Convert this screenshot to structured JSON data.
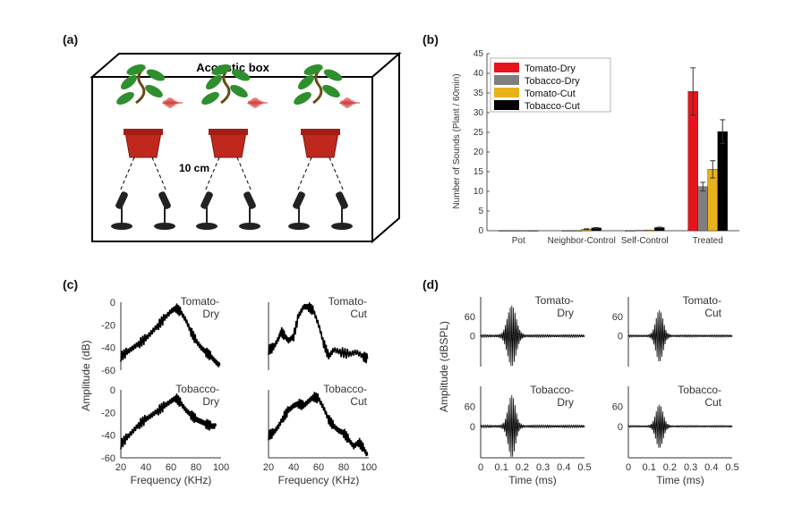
{
  "panels": {
    "a": {
      "label": "(a)",
      "box_title": "Acoustic box",
      "distance": "10 cm",
      "plant_count": 3,
      "mics_per_plant": 2
    },
    "b": {
      "label": "(b)"
    },
    "c": {
      "label": "(c)"
    },
    "d": {
      "label": "(d)"
    }
  },
  "colors": {
    "tomato_dry": "#e8141b",
    "tobacco_dry": "#7f7f7f",
    "tomato_cut": "#e8b31a",
    "tobacco_cut": "#000000",
    "leaf": "#2f8f2f",
    "pot": "#c0281e",
    "wave": "#d23a3a"
  },
  "chart_data": [
    {
      "id": "b",
      "type": "bar",
      "title": "",
      "ylabel": "Number of Sounds (Plant / 60min)",
      "xlabel": "",
      "ylim": [
        0,
        45
      ],
      "yticks": [
        0,
        5,
        10,
        15,
        20,
        25,
        30,
        35,
        40,
        45
      ],
      "categories": [
        "Pot",
        "Neighbor-Control",
        "Self-Control",
        "Treated"
      ],
      "legend_position": "top-left",
      "series": [
        {
          "name": "Tomato-Dry",
          "color": "#e8141b",
          "values": [
            0,
            0,
            0,
            35.4
          ],
          "errors": [
            0,
            0,
            0,
            6
          ]
        },
        {
          "name": "Tobacco-Dry",
          "color": "#7f7f7f",
          "values": [
            0,
            0,
            0.1,
            11.2
          ],
          "errors": [
            0,
            0,
            0,
            1.1
          ]
        },
        {
          "name": "Tomato-Cut",
          "color": "#e8b31a",
          "values": [
            0,
            0.4,
            0.2,
            15.6
          ],
          "errors": [
            0,
            0.1,
            0,
            2.2
          ]
        },
        {
          "name": "Tobacco-Cut",
          "color": "#000000",
          "values": [
            0,
            0.7,
            0.8,
            25.2
          ],
          "errors": [
            0,
            0.1,
            0.1,
            3
          ]
        }
      ]
    },
    {
      "id": "c",
      "type": "line",
      "ylabel": "Amplitude (dB)",
      "xlabel": "Frequency  (KHz)",
      "xlim": [
        20,
        100
      ],
      "xticks": [
        20,
        40,
        60,
        80,
        100
      ],
      "ylim": [
        -60,
        0
      ],
      "yticks": [
        0,
        -20,
        -40,
        -60
      ],
      "subplots": [
        {
          "name": "Tomato-Dry",
          "label_lines": [
            "Tomato-",
            "Dry"
          ],
          "x": [
            20,
            25,
            30,
            35,
            40,
            45,
            50,
            55,
            60,
            64,
            68,
            72,
            76,
            80,
            84,
            88,
            92,
            96,
            99
          ],
          "y": [
            -48,
            -44,
            -40,
            -36,
            -32,
            -26,
            -20,
            -14,
            -8,
            -5,
            -9,
            -16,
            -26,
            -34,
            -40,
            -44,
            -48,
            -53,
            -56
          ]
        },
        {
          "name": "Tomato-Cut",
          "label_lines": [
            "Tomato-",
            "Cut"
          ],
          "x": [
            20,
            24,
            28,
            30,
            33,
            36,
            40,
            44,
            48,
            52,
            56,
            60,
            64,
            68,
            72,
            78,
            84,
            90,
            96,
            99
          ],
          "y": [
            -42,
            -40,
            -32,
            -26,
            -30,
            -34,
            -30,
            -12,
            -4,
            -4,
            -8,
            -20,
            -36,
            -48,
            -42,
            -44,
            -46,
            -44,
            -48,
            -50
          ]
        },
        {
          "name": "Tobacco-Dry",
          "label_lines": [
            "Tobacco-",
            "Dry"
          ],
          "x": [
            20,
            25,
            30,
            35,
            40,
            45,
            50,
            55,
            60,
            64,
            68,
            72,
            76,
            80,
            84,
            88,
            92,
            96
          ],
          "y": [
            -48,
            -42,
            -36,
            -30,
            -26,
            -22,
            -18,
            -14,
            -10,
            -7,
            -12,
            -18,
            -22,
            -26,
            -28,
            -30,
            -32,
            -32
          ]
        },
        {
          "name": "Tobacco-Cut",
          "label_lines": [
            "Tobacco-",
            "Cut"
          ],
          "x": [
            20,
            24,
            28,
            32,
            36,
            40,
            44,
            48,
            52,
            56,
            60,
            64,
            68,
            72,
            76,
            80,
            84,
            88,
            92,
            96,
            99
          ],
          "y": [
            -40,
            -38,
            -32,
            -24,
            -18,
            -14,
            -12,
            -14,
            -10,
            -6,
            -8,
            -16,
            -26,
            -32,
            -36,
            -38,
            -44,
            -50,
            -46,
            -52,
            -58
          ]
        }
      ]
    },
    {
      "id": "d",
      "type": "line",
      "ylabel": "Amplitude (dBSPL)",
      "xlabel": "Time (ms)",
      "xlim": [
        0,
        0.5
      ],
      "xticks": [
        "0",
        "0.1",
        "0.2",
        "0.3",
        "0.4",
        "0.5"
      ],
      "yticks": [
        "60",
        "0"
      ],
      "subplots": [
        {
          "name": "Tomato-Dry",
          "label_lines": [
            "Tomato-",
            "Dry"
          ],
          "center_ms": 0.15,
          "peak": 1.0,
          "decay": 0.06
        },
        {
          "name": "Tomato-Cut",
          "label_lines": [
            "Tomato-",
            "Cut"
          ],
          "center_ms": 0.15,
          "peak": 0.85,
          "decay": 0.05
        },
        {
          "name": "Tobacco-Dry",
          "label_lines": [
            "Tobacco-",
            "Dry"
          ],
          "center_ms": 0.15,
          "peak": 1.0,
          "decay": 0.05
        },
        {
          "name": "Tobacco-Cut",
          "label_lines": [
            "Tobacco-",
            "Cut"
          ],
          "center_ms": 0.15,
          "peak": 0.7,
          "decay": 0.05
        }
      ]
    }
  ]
}
